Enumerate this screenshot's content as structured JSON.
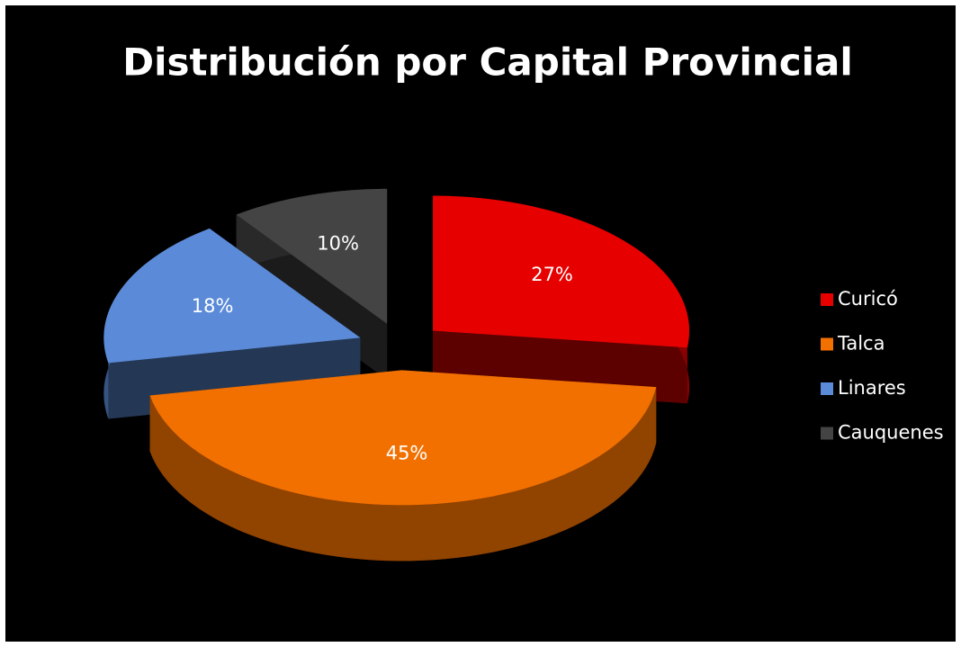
{
  "chart_data": {
    "type": "pie",
    "title": "Distribución por Capital Provincial",
    "categories": [
      "Curicó",
      "Talca",
      "Linares",
      "Cauquenes"
    ],
    "values": [
      27,
      45,
      18,
      10
    ],
    "value_labels": [
      "27%",
      "45%",
      "18%",
      "10%"
    ],
    "colors": [
      "#e60000",
      "#f27000",
      "#5b8bd8",
      "#444444"
    ],
    "legend": "right"
  }
}
